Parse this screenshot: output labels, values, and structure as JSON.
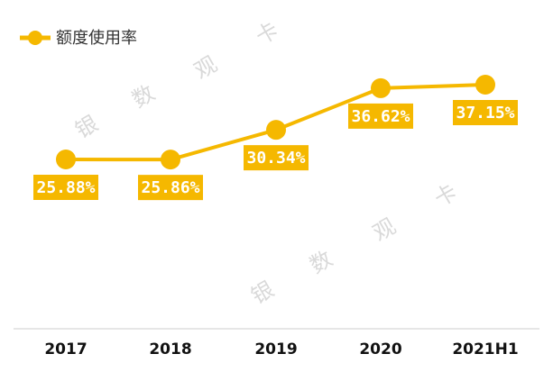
{
  "chart_data": {
    "type": "line",
    "categories": [
      "2017",
      "2018",
      "2019",
      "2020",
      "2021H1"
    ],
    "series": [
      {
        "name": "额度使用率",
        "values": [
          25.88,
          25.86,
          30.34,
          36.62,
          37.15
        ],
        "labels": [
          "25.88%",
          "25.86%",
          "30.34%",
          "36.62%",
          "37.15%"
        ]
      }
    ],
    "ylim": [
      20,
      40
    ],
    "grid": false,
    "legend_position": "top-left",
    "colors": {
      "line": "#f5b800",
      "label_box": "#f5b800",
      "label_text": "#ffffff",
      "axis": "#cccccc"
    }
  },
  "watermarks": [
    "银",
    "数",
    "观",
    "卡",
    "银",
    "数",
    "观",
    "卡"
  ]
}
